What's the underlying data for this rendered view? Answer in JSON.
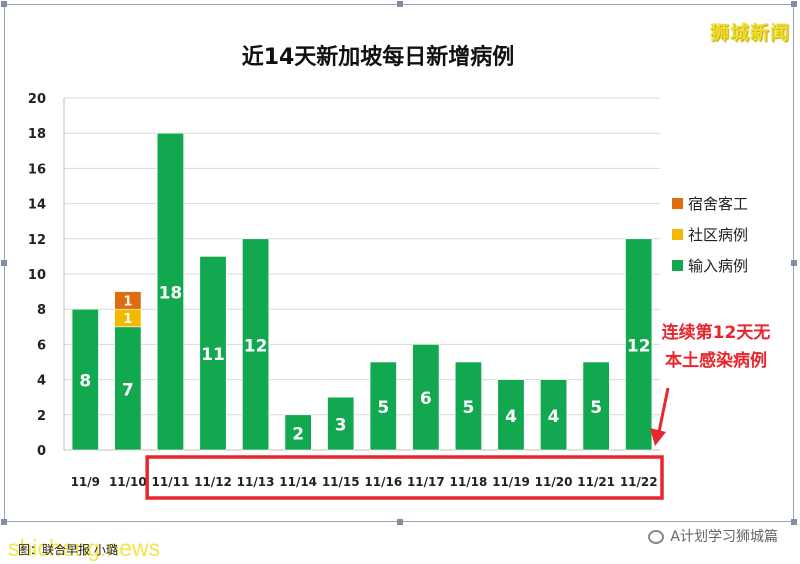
{
  "watermark_top": "狮城新闻",
  "footer": {
    "credit": "图：联合早报   小璐",
    "site": "shicheng.news",
    "account": "A计划学习狮城篇"
  },
  "chart_data": {
    "type": "bar",
    "stacked": true,
    "title": "近14天新加坡每日新增病例",
    "xlabel": "",
    "ylabel": "",
    "ylim": [
      0,
      20
    ],
    "yticks": [
      0,
      2,
      4,
      6,
      8,
      10,
      12,
      14,
      16,
      18,
      20
    ],
    "grid": true,
    "legend_position": "right",
    "categories": [
      "11/9",
      "11/10",
      "11/11",
      "11/12",
      "11/13",
      "11/14",
      "11/15",
      "11/16",
      "11/17",
      "11/18",
      "11/19",
      "11/20",
      "11/21",
      "11/22"
    ],
    "series": [
      {
        "name": "输入病例",
        "color": "#11a84f",
        "values": [
          8,
          7,
          18,
          11,
          12,
          2,
          3,
          5,
          6,
          5,
          4,
          4,
          5,
          12
        ]
      },
      {
        "name": "社区病例",
        "color": "#f5b800",
        "values": [
          0,
          1,
          0,
          0,
          0,
          0,
          0,
          0,
          0,
          0,
          0,
          0,
          0,
          0
        ]
      },
      {
        "name": "宿舍客工",
        "color": "#e06c10",
        "values": [
          0,
          1,
          0,
          0,
          0,
          0,
          0,
          0,
          0,
          0,
          0,
          0,
          0,
          0
        ]
      }
    ],
    "legend_order": [
      "宿舍客工",
      "社区病例",
      "输入病例"
    ],
    "annotation": {
      "text_lines": [
        "连续第12天无",
        "本土感染病例"
      ],
      "color": "#e8262e",
      "highlight_range": [
        "11/11",
        "11/22"
      ]
    }
  }
}
